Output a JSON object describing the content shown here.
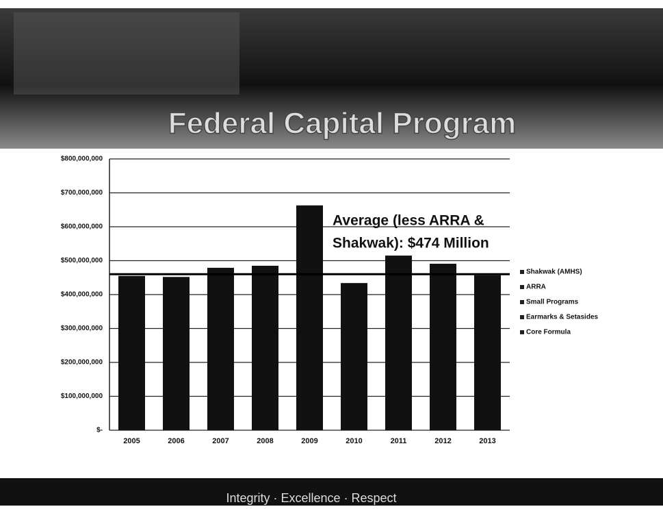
{
  "header": {
    "title": "Federal Capital Program"
  },
  "chart_data": {
    "type": "bar",
    "categories": [
      "2005",
      "2006",
      "2007",
      "2008",
      "2009",
      "2010",
      "2011",
      "2012",
      "2013"
    ],
    "values": [
      455000000,
      452000000,
      479000000,
      485000000,
      663000000,
      434000000,
      515000000,
      491000000,
      457000000
    ],
    "color": "#111111",
    "ylim": [
      0,
      800000000
    ],
    "yticks": [
      {
        "value": 0,
        "label": "$-"
      },
      {
        "value": 100000000,
        "label": "$100,000,000"
      },
      {
        "value": 200000000,
        "label": "$200,000,000"
      },
      {
        "value": 300000000,
        "label": "$300,000,000"
      },
      {
        "value": 400000000,
        "label": "$400,000,000"
      },
      {
        "value": 500000000,
        "label": "$500,000,000"
      },
      {
        "value": 600000000,
        "label": "$600,000,000"
      },
      {
        "value": 700000000,
        "label": "$700,000,000"
      },
      {
        "value": 800000000,
        "label": "$800,000,000"
      }
    ],
    "grid": true,
    "reference_line": 460000000,
    "annotation": [
      "Average (less ARRA &",
      "Shakwak): $474 Million"
    ],
    "legend": [
      "Shakwak (AMHS)",
      "ARRA",
      "Small Programs",
      "Earmarks & Setasides",
      "Core Formula"
    ]
  },
  "footer": {
    "text": "Integrity · Excellence · Respect"
  }
}
